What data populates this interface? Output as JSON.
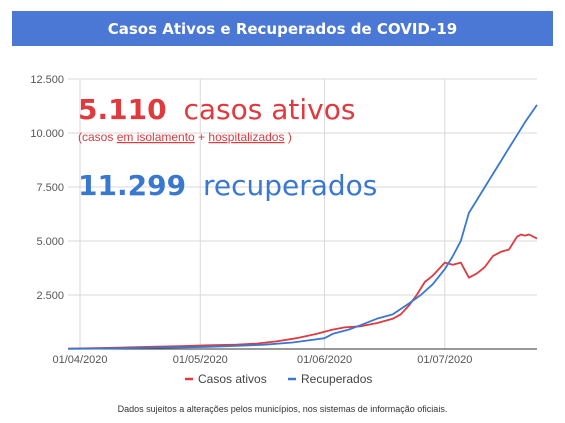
{
  "header": {
    "title": "Casos Ativos e Recuperados de COVID-19"
  },
  "highlights": {
    "active_value": "5.110",
    "active_text": "casos ativos",
    "active_note_prefix": "(casos ",
    "active_note_isolation": "em isolamento",
    "active_note_plus": " + ",
    "active_note_hospital": "hospitalizados",
    "active_note_suffix": ")",
    "recovered_value": "11.299",
    "recovered_text": "recuperados"
  },
  "footnote": "Dados sujeitos a alterações pelos municípios, nos sistemas de informação oficiais.",
  "colors": {
    "header": "#4a78d4",
    "active": "#e0393e",
    "recovered": "#3a78d0",
    "grid": "#d9d9d9"
  },
  "chart_data": {
    "type": "line",
    "title": "Casos Ativos e Recuperados de COVID-19",
    "xlabel": "",
    "ylabel": "",
    "x_start": "2020-03-29",
    "x_end": "2020-07-24",
    "x_ticks": [
      {
        "date": "2020-04-01",
        "label": "01/04/2020"
      },
      {
        "date": "2020-05-01",
        "label": "01/05/2020"
      },
      {
        "date": "2020-06-01",
        "label": "01/06/2020"
      },
      {
        "date": "2020-07-01",
        "label": "01/07/2020"
      }
    ],
    "ylim": [
      0,
      12500
    ],
    "y_ticks": [
      {
        "value": 2500,
        "label": "2.500"
      },
      {
        "value": 5000,
        "label": "5.000"
      },
      {
        "value": 7500,
        "label": "7.500"
      },
      {
        "value": 10000,
        "label": "10.000"
      },
      {
        "value": 12500,
        "label": "12.500"
      }
    ],
    "grid": true,
    "legend_position": "bottom",
    "series": [
      {
        "name": "Casos ativos",
        "color": "#e0393e",
        "points": [
          [
            "2020-03-29",
            20
          ],
          [
            "2020-04-05",
            40
          ],
          [
            "2020-04-12",
            70
          ],
          [
            "2020-04-19",
            100
          ],
          [
            "2020-04-26",
            130
          ],
          [
            "2020-05-03",
            170
          ],
          [
            "2020-05-10",
            200
          ],
          [
            "2020-05-15",
            250
          ],
          [
            "2020-05-20",
            350
          ],
          [
            "2020-05-25",
            500
          ],
          [
            "2020-05-30",
            700
          ],
          [
            "2020-06-03",
            900
          ],
          [
            "2020-06-06",
            1000
          ],
          [
            "2020-06-10",
            1050
          ],
          [
            "2020-06-14",
            1200
          ],
          [
            "2020-06-18",
            1400
          ],
          [
            "2020-06-20",
            1600
          ],
          [
            "2020-06-22",
            2000
          ],
          [
            "2020-06-24",
            2500
          ],
          [
            "2020-06-26",
            3100
          ],
          [
            "2020-06-28",
            3400
          ],
          [
            "2020-07-01",
            4000
          ],
          [
            "2020-07-03",
            3900
          ],
          [
            "2020-07-05",
            4000
          ],
          [
            "2020-07-07",
            3300
          ],
          [
            "2020-07-09",
            3500
          ],
          [
            "2020-07-11",
            3800
          ],
          [
            "2020-07-13",
            4300
          ],
          [
            "2020-07-15",
            4500
          ],
          [
            "2020-07-17",
            4600
          ],
          [
            "2020-07-19",
            5200
          ],
          [
            "2020-07-20",
            5300
          ],
          [
            "2020-07-21",
            5250
          ],
          [
            "2020-07-22",
            5300
          ],
          [
            "2020-07-24",
            5110
          ]
        ]
      },
      {
        "name": "Recuperados",
        "color": "#3a78d0",
        "points": [
          [
            "2020-03-29",
            10
          ],
          [
            "2020-04-05",
            20
          ],
          [
            "2020-04-12",
            40
          ],
          [
            "2020-04-19",
            60
          ],
          [
            "2020-04-26",
            80
          ],
          [
            "2020-05-03",
            100
          ],
          [
            "2020-05-10",
            150
          ],
          [
            "2020-05-17",
            200
          ],
          [
            "2020-05-24",
            300
          ],
          [
            "2020-05-28",
            400
          ],
          [
            "2020-06-01",
            500
          ],
          [
            "2020-06-03",
            700
          ],
          [
            "2020-06-07",
            900
          ],
          [
            "2020-06-10",
            1100
          ],
          [
            "2020-06-14",
            1400
          ],
          [
            "2020-06-18",
            1600
          ],
          [
            "2020-06-22",
            2100
          ],
          [
            "2020-06-25",
            2500
          ],
          [
            "2020-06-28",
            3000
          ],
          [
            "2020-07-01",
            3700
          ],
          [
            "2020-07-03",
            4300
          ],
          [
            "2020-07-05",
            5000
          ],
          [
            "2020-07-07",
            6300
          ],
          [
            "2020-07-09",
            6900
          ],
          [
            "2020-07-11",
            7500
          ],
          [
            "2020-07-13",
            8100
          ],
          [
            "2020-07-15",
            8700
          ],
          [
            "2020-07-17",
            9300
          ],
          [
            "2020-07-19",
            9900
          ],
          [
            "2020-07-21",
            10500
          ],
          [
            "2020-07-24",
            11299
          ]
        ]
      }
    ]
  }
}
